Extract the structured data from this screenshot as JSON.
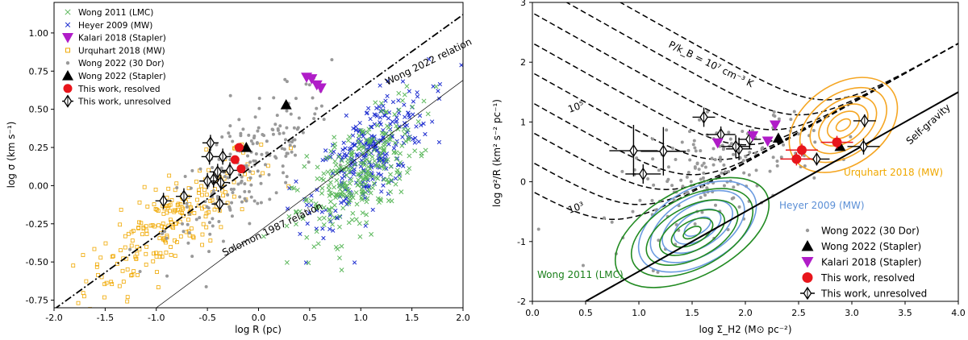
{
  "chart_data": [
    {
      "type": "scatter",
      "xlabel": "log R (pc)",
      "ylabel": "log σ (km s⁻¹)",
      "xlim": [
        -2.0,
        2.0
      ],
      "ylim": [
        -0.8,
        1.2
      ],
      "xticks": [
        "-2.0",
        "-1.5",
        "-1.0",
        "-0.5",
        "0.0",
        "0.5",
        "1.0",
        "1.5",
        "2.0"
      ],
      "yticks": [
        "-0.75",
        "-0.50",
        "-0.25",
        "0.00",
        "0.25",
        "0.50",
        "0.75",
        "1.00"
      ],
      "legend": [
        "Wong 2011 (LMC)",
        "Heyer 2009 (MW)",
        "Kalari 2018 (Stapler)",
        "Urquhart 2018 (MW)",
        "Wong 2022 (30 Dor)",
        "Wong 2022 (Stapler)",
        "This work, resolved",
        "This work, unresolved"
      ],
      "lines": [
        {
          "name": "Wong 2022 relation",
          "label": "Wong 2022 relation",
          "x": [
            -2.0,
            2.0
          ],
          "y": [
            -0.81,
            1.12
          ],
          "style": "dashdot"
        },
        {
          "name": "Solomon 1987 relation",
          "label": "Solomon 1987 relation",
          "x": [
            -1.0,
            2.0
          ],
          "y": [
            -0.8,
            0.69
          ],
          "style": "solid-thin"
        }
      ],
      "series": [
        {
          "name": "This work, resolved",
          "points": [
            [
              -0.19,
              0.25
            ],
            [
              -0.23,
              0.17
            ],
            [
              -0.17,
              0.11
            ]
          ]
        },
        {
          "name": "Wong 2022 (Stapler)",
          "points": [
            [
              -0.12,
              0.25
            ],
            [
              0.27,
              0.53
            ]
          ]
        },
        {
          "name": "Kalari 2018 (Stapler)",
          "points": [
            [
              0.47,
              0.71
            ],
            [
              0.52,
              0.7
            ],
            [
              0.57,
              0.66
            ],
            [
              0.61,
              0.64
            ]
          ]
        },
        {
          "name": "This work, unresolved",
          "points": [
            [
              -0.47,
              0.28
            ],
            [
              -0.48,
              0.19
            ],
            [
              -0.35,
              0.19
            ],
            [
              -0.4,
              0.09
            ],
            [
              -0.28,
              0.1
            ],
            [
              -0.44,
              0.04
            ],
            [
              -0.5,
              0.03
            ],
            [
              -0.37,
              0.02
            ],
            [
              -0.73,
              -0.07
            ],
            [
              -0.93,
              -0.1
            ],
            [
              -0.38,
              -0.12
            ]
          ]
        }
      ]
    },
    {
      "type": "scatter",
      "xlabel": "log Σ_H2 (M⊙ pc⁻²)",
      "ylabel": "log σ²/R (km² s⁻² pc⁻¹)",
      "xlim": [
        0.0,
        4.0
      ],
      "ylim": [
        -2.0,
        3.0
      ],
      "xticks": [
        "0.0",
        "0.5",
        "1.0",
        "1.5",
        "2.0",
        "2.5",
        "3.0",
        "3.5",
        "4.0"
      ],
      "yticks": [
        "-2",
        "-1",
        "0",
        "1",
        "2",
        "3"
      ],
      "legend": [
        "Wong 2022 (30 Dor)",
        "Wong 2022 (Stapler)",
        "Kalari 2018 (Stapler)",
        "This work, resolved",
        "This work, unresolved"
      ],
      "annotations": {
        "pressure_top": "P/k_B = 10⁷ cm⁻³ K",
        "p5": "10⁵",
        "p3": "10³",
        "self_gravity": "Self-gravity",
        "urquhart": "Urquhart 2018 (MW)",
        "heyer": "Heyer 2009 (MW)",
        "wong2011": "Wong 2011 (LMC)"
      },
      "self_gravity_line": {
        "x": [
          0.5,
          4.0
        ],
        "y": [
          -2.0,
          1.5
        ]
      },
      "series": [
        {
          "name": "This work, resolved",
          "points": [
            [
              2.53,
              0.53
            ],
            [
              2.48,
              0.38
            ],
            [
              2.86,
              0.66
            ]
          ]
        },
        {
          "name": "Wong 2022 (Stapler)",
          "points": [
            [
              2.31,
              0.73
            ],
            [
              2.89,
              0.59
            ]
          ]
        },
        {
          "name": "Kalari 2018 (Stapler)",
          "points": [
            [
              1.74,
              0.65
            ],
            [
              2.07,
              0.77
            ],
            [
              2.21,
              0.68
            ],
            [
              2.28,
              0.95
            ]
          ]
        },
        {
          "name": "This work, unresolved",
          "points": [
            [
              0.95,
              0.52
            ],
            [
              1.04,
              0.13
            ],
            [
              1.23,
              0.51
            ],
            [
              1.61,
              1.08
            ],
            [
              1.77,
              0.79
            ],
            [
              1.94,
              0.55
            ],
            [
              2.04,
              0.71
            ],
            [
              1.91,
              0.59
            ],
            [
              2.67,
              0.38
            ],
            [
              3.12,
              1.02
            ],
            [
              3.11,
              0.59
            ]
          ]
        }
      ]
    }
  ]
}
